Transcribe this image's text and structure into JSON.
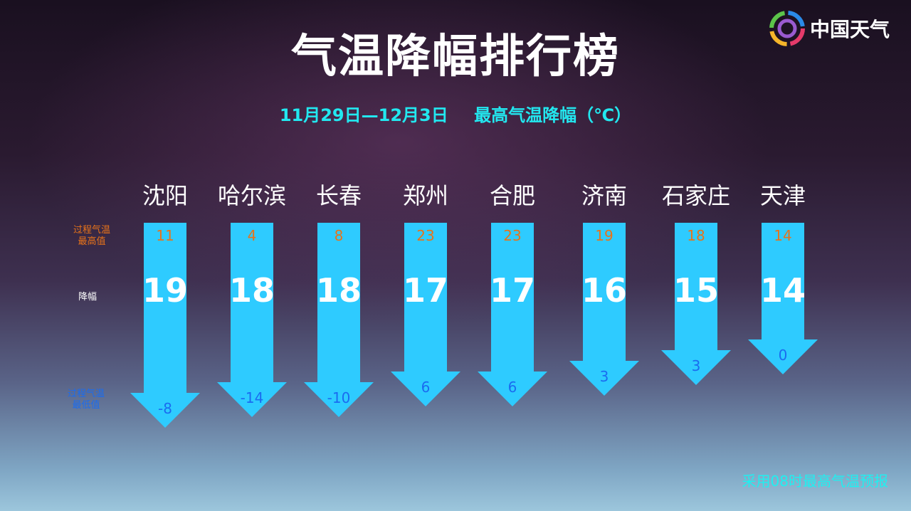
{
  "title": "气温降幅排行榜",
  "subtitle": {
    "period": "11月29日—12月3日",
    "metric": "最高气温降幅（℃）"
  },
  "logo": {
    "text": "中国天气"
  },
  "row_labels": {
    "max": "过程气温\n最高值",
    "drop": "降幅",
    "min": "过程气温\n最低值"
  },
  "note": "采用08时最高气温预报",
  "colors": {
    "arrow": "#2ecbff",
    "max_value": "#e8731a",
    "min_value": "#1a6cf0",
    "subtitle": "#22e8f0"
  },
  "chart_data": {
    "type": "bar",
    "orientation": "downward-arrows",
    "categories": [
      "沈阳",
      "哈尔滨",
      "长春",
      "郑州",
      "合肥",
      "济南",
      "石家庄",
      "天津"
    ],
    "series": [
      {
        "name": "降幅",
        "values": [
          19,
          18,
          18,
          17,
          17,
          16,
          15,
          14
        ]
      },
      {
        "name": "过程气温最高值",
        "values": [
          11,
          4,
          8,
          23,
          23,
          19,
          18,
          14
        ]
      },
      {
        "name": "过程气温最低值",
        "values": [
          -8,
          -14,
          -10,
          6,
          6,
          3,
          3,
          0
        ]
      }
    ],
    "unit": "℃"
  }
}
